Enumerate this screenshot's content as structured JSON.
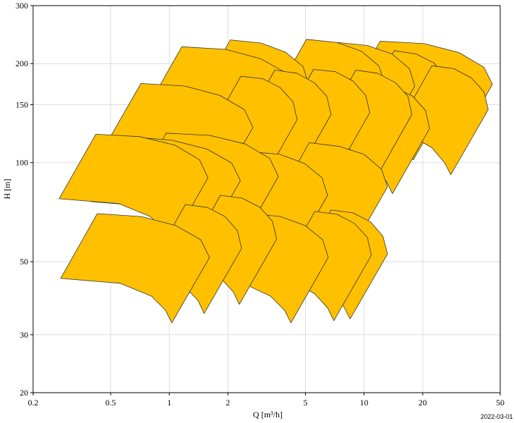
{
  "chart_data": {
    "type": "area",
    "xlabel": "Q [m³/h]",
    "ylabel": "H [m]",
    "annotation": "2022-03-01",
    "xscale": "log",
    "yscale": "log",
    "xlim": [
      0.2,
      50
    ],
    "ylim": [
      20,
      300
    ],
    "xticks": [
      0.2,
      0.5,
      1,
      2,
      5,
      10,
      20,
      50
    ],
    "yticks": [
      20,
      30,
      50,
      100,
      150,
      200,
      300
    ],
    "grid": true,
    "color": "#ffc000",
    "edgecolor": "#333333",
    "series": [
      {
        "x": [
          12.1,
          20.4,
          30.8,
          41.2,
          45.6,
          29.4,
          27.2,
          23.0,
          15.9,
          7.86
        ],
        "values": [
          234,
          230,
          216,
          195,
          173,
          109,
          119,
          131,
          144,
          149
        ]
      },
      {
        "x": [
          14.3,
          18.5,
          22.8,
          26.5,
          27.9,
          17.9,
          16.6,
          14.3,
          11.2,
          9.28
        ],
        "values": [
          219,
          214,
          201,
          182,
          161,
          102,
          111,
          123,
          134,
          139
        ]
      },
      {
        "x": [
          7.24,
          10.4,
          13.9,
          17.1,
          18.2,
          11.7,
          10.9,
          9.22,
          6.66,
          4.69
        ],
        "values": [
          232,
          227,
          214,
          193,
          171,
          108,
          118,
          130,
          143,
          147
        ]
      },
      {
        "x": [
          5.06,
          7.24,
          9.69,
          11.9,
          12.8,
          8.2,
          7.61,
          6.44,
          4.66,
          3.28
        ],
        "values": [
          237,
          232,
          218,
          197,
          174,
          110,
          120,
          133,
          145,
          150
        ]
      },
      {
        "x": [
          2.06,
          2.95,
          3.94,
          4.86,
          5.19,
          3.34,
          3.1,
          2.62,
          1.9,
          1.33
        ],
        "values": [
          236,
          231,
          217,
          196,
          173,
          110,
          120,
          132,
          145,
          150
        ]
      },
      {
        "x": [
          1.16,
          1.95,
          2.94,
          3.94,
          4.36,
          2.8,
          2.6,
          2.2,
          1.52,
          0.751
        ],
        "values": [
          225,
          221,
          207,
          188,
          166,
          105,
          115,
          126,
          138,
          143
        ]
      },
      {
        "x": [
          22.3,
          28.9,
          35.5,
          41.3,
          43.4,
          27.9,
          25.9,
          22.3,
          17.4,
          14.5
        ],
        "values": [
          197,
          193,
          181,
          164,
          145,
          91.9,
          100,
          111,
          121,
          125
        ]
      },
      {
        "x": [
          11.2,
          14.5,
          17.8,
          20.7,
          21.7,
          14.0,
          13.0,
          11.2,
          8.69,
          7.23
        ],
        "values": [
          173,
          169,
          159,
          144,
          127,
          80.5,
          87.9,
          96.9,
          106,
          110
        ]
      },
      {
        "x": [
          9.07,
          11.7,
          14.5,
          16.8,
          17.6,
          11.4,
          10.5,
          9.07,
          7.07,
          5.88
        ],
        "values": [
          191,
          187,
          175,
          159,
          140,
          88.8,
          97.0,
          107,
          117,
          121
        ]
      },
      {
        "x": [
          5.5,
          7.12,
          8.77,
          10.2,
          10.7,
          6.89,
          6.39,
          5.5,
          4.28,
          3.56
        ],
        "values": [
          192,
          189,
          177,
          160,
          142,
          89.7,
          97.9,
          108,
          118,
          122
        ]
      },
      {
        "x": [
          3.48,
          4.51,
          5.55,
          6.44,
          6.77,
          4.36,
          4.04,
          3.48,
          2.71,
          2.26
        ],
        "values": [
          191,
          187,
          175,
          159,
          140,
          88.8,
          97.0,
          107,
          117,
          121
        ]
      },
      {
        "x": [
          2.33,
          3.02,
          3.71,
          4.32,
          4.53,
          2.92,
          2.71,
          2.33,
          1.82,
          1.51
        ],
        "values": [
          183,
          180,
          169,
          153,
          135,
          85.4,
          93.2,
          103,
          112,
          116
        ]
      },
      {
        "x": [
          0.715,
          1.2,
          1.82,
          2.43,
          2.69,
          1.73,
          1.6,
          1.36,
          0.937,
          0.463
        ],
        "values": [
          174,
          171,
          160,
          145,
          128,
          81.3,
          88.8,
          97.8,
          107,
          111
        ]
      },
      {
        "x": [
          5.23,
          7.48,
          10.0,
          12.3,
          13.2,
          8.48,
          7.87,
          6.66,
          4.81,
          3.39
        ],
        "values": [
          115,
          112,
          106,
          95.5,
          84.4,
          53.5,
          58.4,
          64.3,
          70.4,
          72.8
        ]
      },
      {
        "x": [
          2.58,
          3.69,
          4.94,
          6.08,
          6.5,
          4.18,
          3.88,
          3.28,
          2.37,
          1.67
        ],
        "values": [
          108,
          106,
          99.5,
          90.0,
          79.6,
          50.4,
          55.0,
          60.6,
          66.4,
          68.6
        ]
      },
      {
        "x": [
          0.965,
          1.62,
          2.45,
          3.28,
          3.63,
          2.34,
          2.16,
          1.83,
          1.26,
          0.625
        ],
        "values": [
          123,
          121,
          114,
          103,
          90.8,
          57.5,
          62.8,
          69.2,
          75.8,
          78.4
        ]
      },
      {
        "x": [
          0.616,
          1.03,
          1.56,
          2.09,
          2.32,
          1.49,
          1.38,
          1.17,
          0.807,
          0.399
        ],
        "values": [
          120,
          117,
          110,
          99.8,
          88.2,
          55.8,
          61.0,
          67.2,
          73.6,
          76.1
        ]
      },
      {
        "x": [
          0.42,
          0.706,
          1.07,
          1.43,
          1.58,
          1.02,
          0.941,
          0.798,
          0.55,
          0.272
        ],
        "values": [
          122,
          120,
          113,
          102,
          90.0,
          57.0,
          62.3,
          68.6,
          75.1,
          77.7
        ]
      },
      {
        "x": [
          6.77,
          8.77,
          10.8,
          12.5,
          13.2,
          8.48,
          7.87,
          6.77,
          5.27,
          4.39
        ],
        "values": [
          71.8,
          70.4,
          66.1,
          59.8,
          52.8,
          33.5,
          36.5,
          40.3,
          44.1,
          45.6
        ]
      },
      {
        "x": [
          5.59,
          7.24,
          8.91,
          10.4,
          10.9,
          7.0,
          6.5,
          5.59,
          4.35,
          3.62
        ],
        "values": [
          71.1,
          69.7,
          65.4,
          59.2,
          52.3,
          33.1,
          36.2,
          39.9,
          43.7,
          45.1
        ]
      },
      {
        "x": [
          2.6,
          3.72,
          4.98,
          6.13,
          6.55,
          4.21,
          3.91,
          3.31,
          2.39,
          1.68
        ],
        "values": [
          70.0,
          68.6,
          64.4,
          58.3,
          51.5,
          32.6,
          35.6,
          39.3,
          43.0,
          44.5
        ]
      },
      {
        "x": [
          1.83,
          2.37,
          2.92,
          3.39,
          3.56,
          2.29,
          2.13,
          1.83,
          1.43,
          1.19
        ],
        "values": [
          79.6,
          78.0,
          73.2,
          66.3,
          58.6,
          37.1,
          40.5,
          44.7,
          48.9,
          50.5
        ]
      },
      {
        "x": [
          1.21,
          1.57,
          1.93,
          2.24,
          2.35,
          1.51,
          1.41,
          1.21,
          0.943,
          0.784
        ],
        "values": [
          74.6,
          73.1,
          68.6,
          62.1,
          54.9,
          34.8,
          38.0,
          41.9,
          45.8,
          47.4
        ]
      },
      {
        "x": [
          0.427,
          0.717,
          1.08,
          1.45,
          1.61,
          1.03,
          0.956,
          0.811,
          0.559,
          0.277
        ],
        "values": [
          70.0,
          68.6,
          64.4,
          58.3,
          51.5,
          32.6,
          35.6,
          39.3,
          43.0,
          44.5
        ]
      }
    ]
  }
}
